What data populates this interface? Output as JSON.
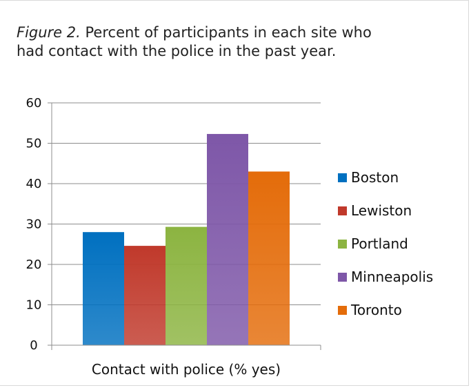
{
  "caption": {
    "figure_label": "Figure 2.",
    "text": "Percent of participants in each site who had contact with the police in the past year."
  },
  "chart_data": {
    "type": "bar",
    "categories": [
      "Contact with police (% yes)"
    ],
    "series": [
      {
        "name": "Boston",
        "values": [
          28
        ],
        "color": "#0070c0"
      },
      {
        "name": "Lewiston",
        "values": [
          24.6
        ],
        "color": "#c0392b"
      },
      {
        "name": "Portland",
        "values": [
          29.3
        ],
        "color": "#8cb441"
      },
      {
        "name": "Minneapolis",
        "values": [
          52.3
        ],
        "color": "#7e57a8"
      },
      {
        "name": "Toronto",
        "values": [
          43
        ],
        "color": "#e46c0a"
      }
    ],
    "yticks": [
      0,
      10,
      20,
      30,
      40,
      50,
      60
    ],
    "ylim": [
      0,
      60
    ],
    "xlabel": "Contact with police (% yes)",
    "ylabel": "",
    "grid": true,
    "legend": "right"
  }
}
